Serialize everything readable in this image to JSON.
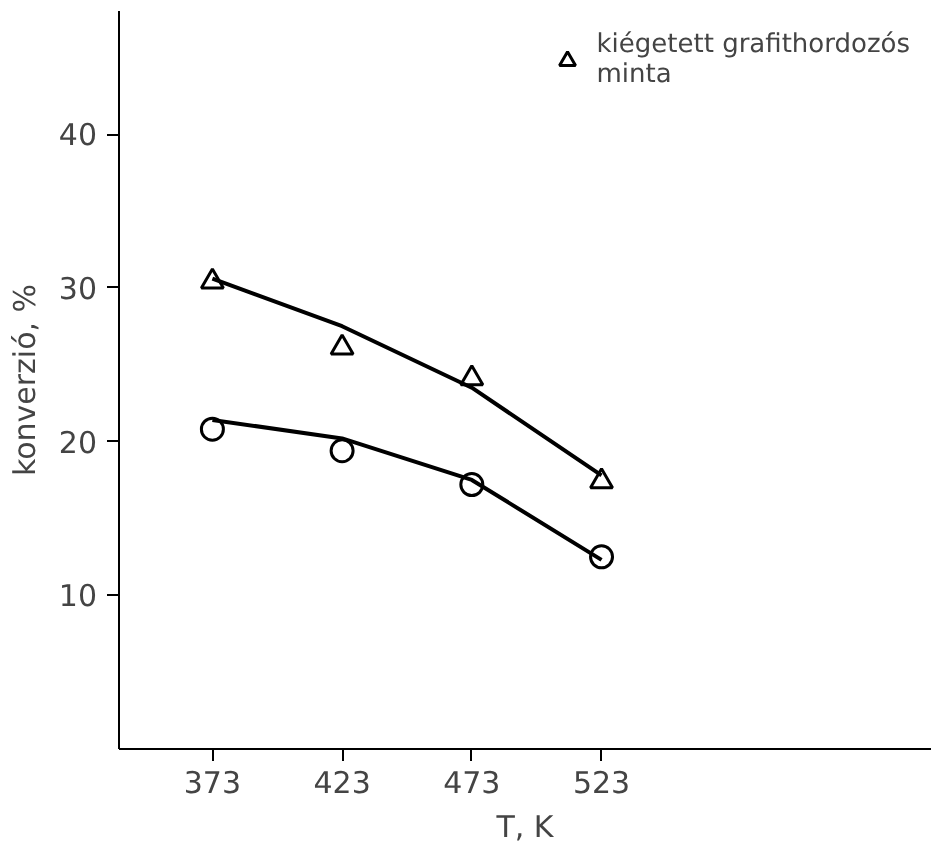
{
  "chart_data": {
    "type": "scatter",
    "xlabel": "T, K",
    "ylabel": "konverzió, %",
    "xlim": [
      337,
      650
    ],
    "ylim": [
      0,
      48
    ],
    "xticks": [
      373,
      423,
      473,
      523
    ],
    "yticks": [
      10,
      20,
      30,
      40
    ],
    "grid": false,
    "legend": "top right",
    "series": [
      {
        "name": "kiégetett grafithordozós\nminta",
        "marker": "triangle",
        "color": "#000000",
        "x": [
          373,
          423,
          473,
          523
        ],
        "values": [
          30.4,
          26.1,
          24.1,
          17.4
        ]
      },
      {
        "type": "line",
        "marker": "none",
        "line_style": "solid",
        "color": "#000000",
        "x": [
          373,
          423,
          473,
          523
        ],
        "values": [
          30.6,
          27.5,
          23.5,
          17.8
        ]
      },
      {
        "marker": "circle",
        "color": "#000000",
        "x": [
          373,
          423,
          473,
          523
        ],
        "values": [
          20.8,
          19.4,
          17.2,
          12.5
        ]
      },
      {
        "type": "line",
        "marker": "none",
        "line_style": "solid",
        "color": "#000000",
        "x": [
          373,
          423,
          473,
          523
        ],
        "values": [
          21.4,
          20.2,
          17.5,
          12.3
        ]
      }
    ]
  }
}
